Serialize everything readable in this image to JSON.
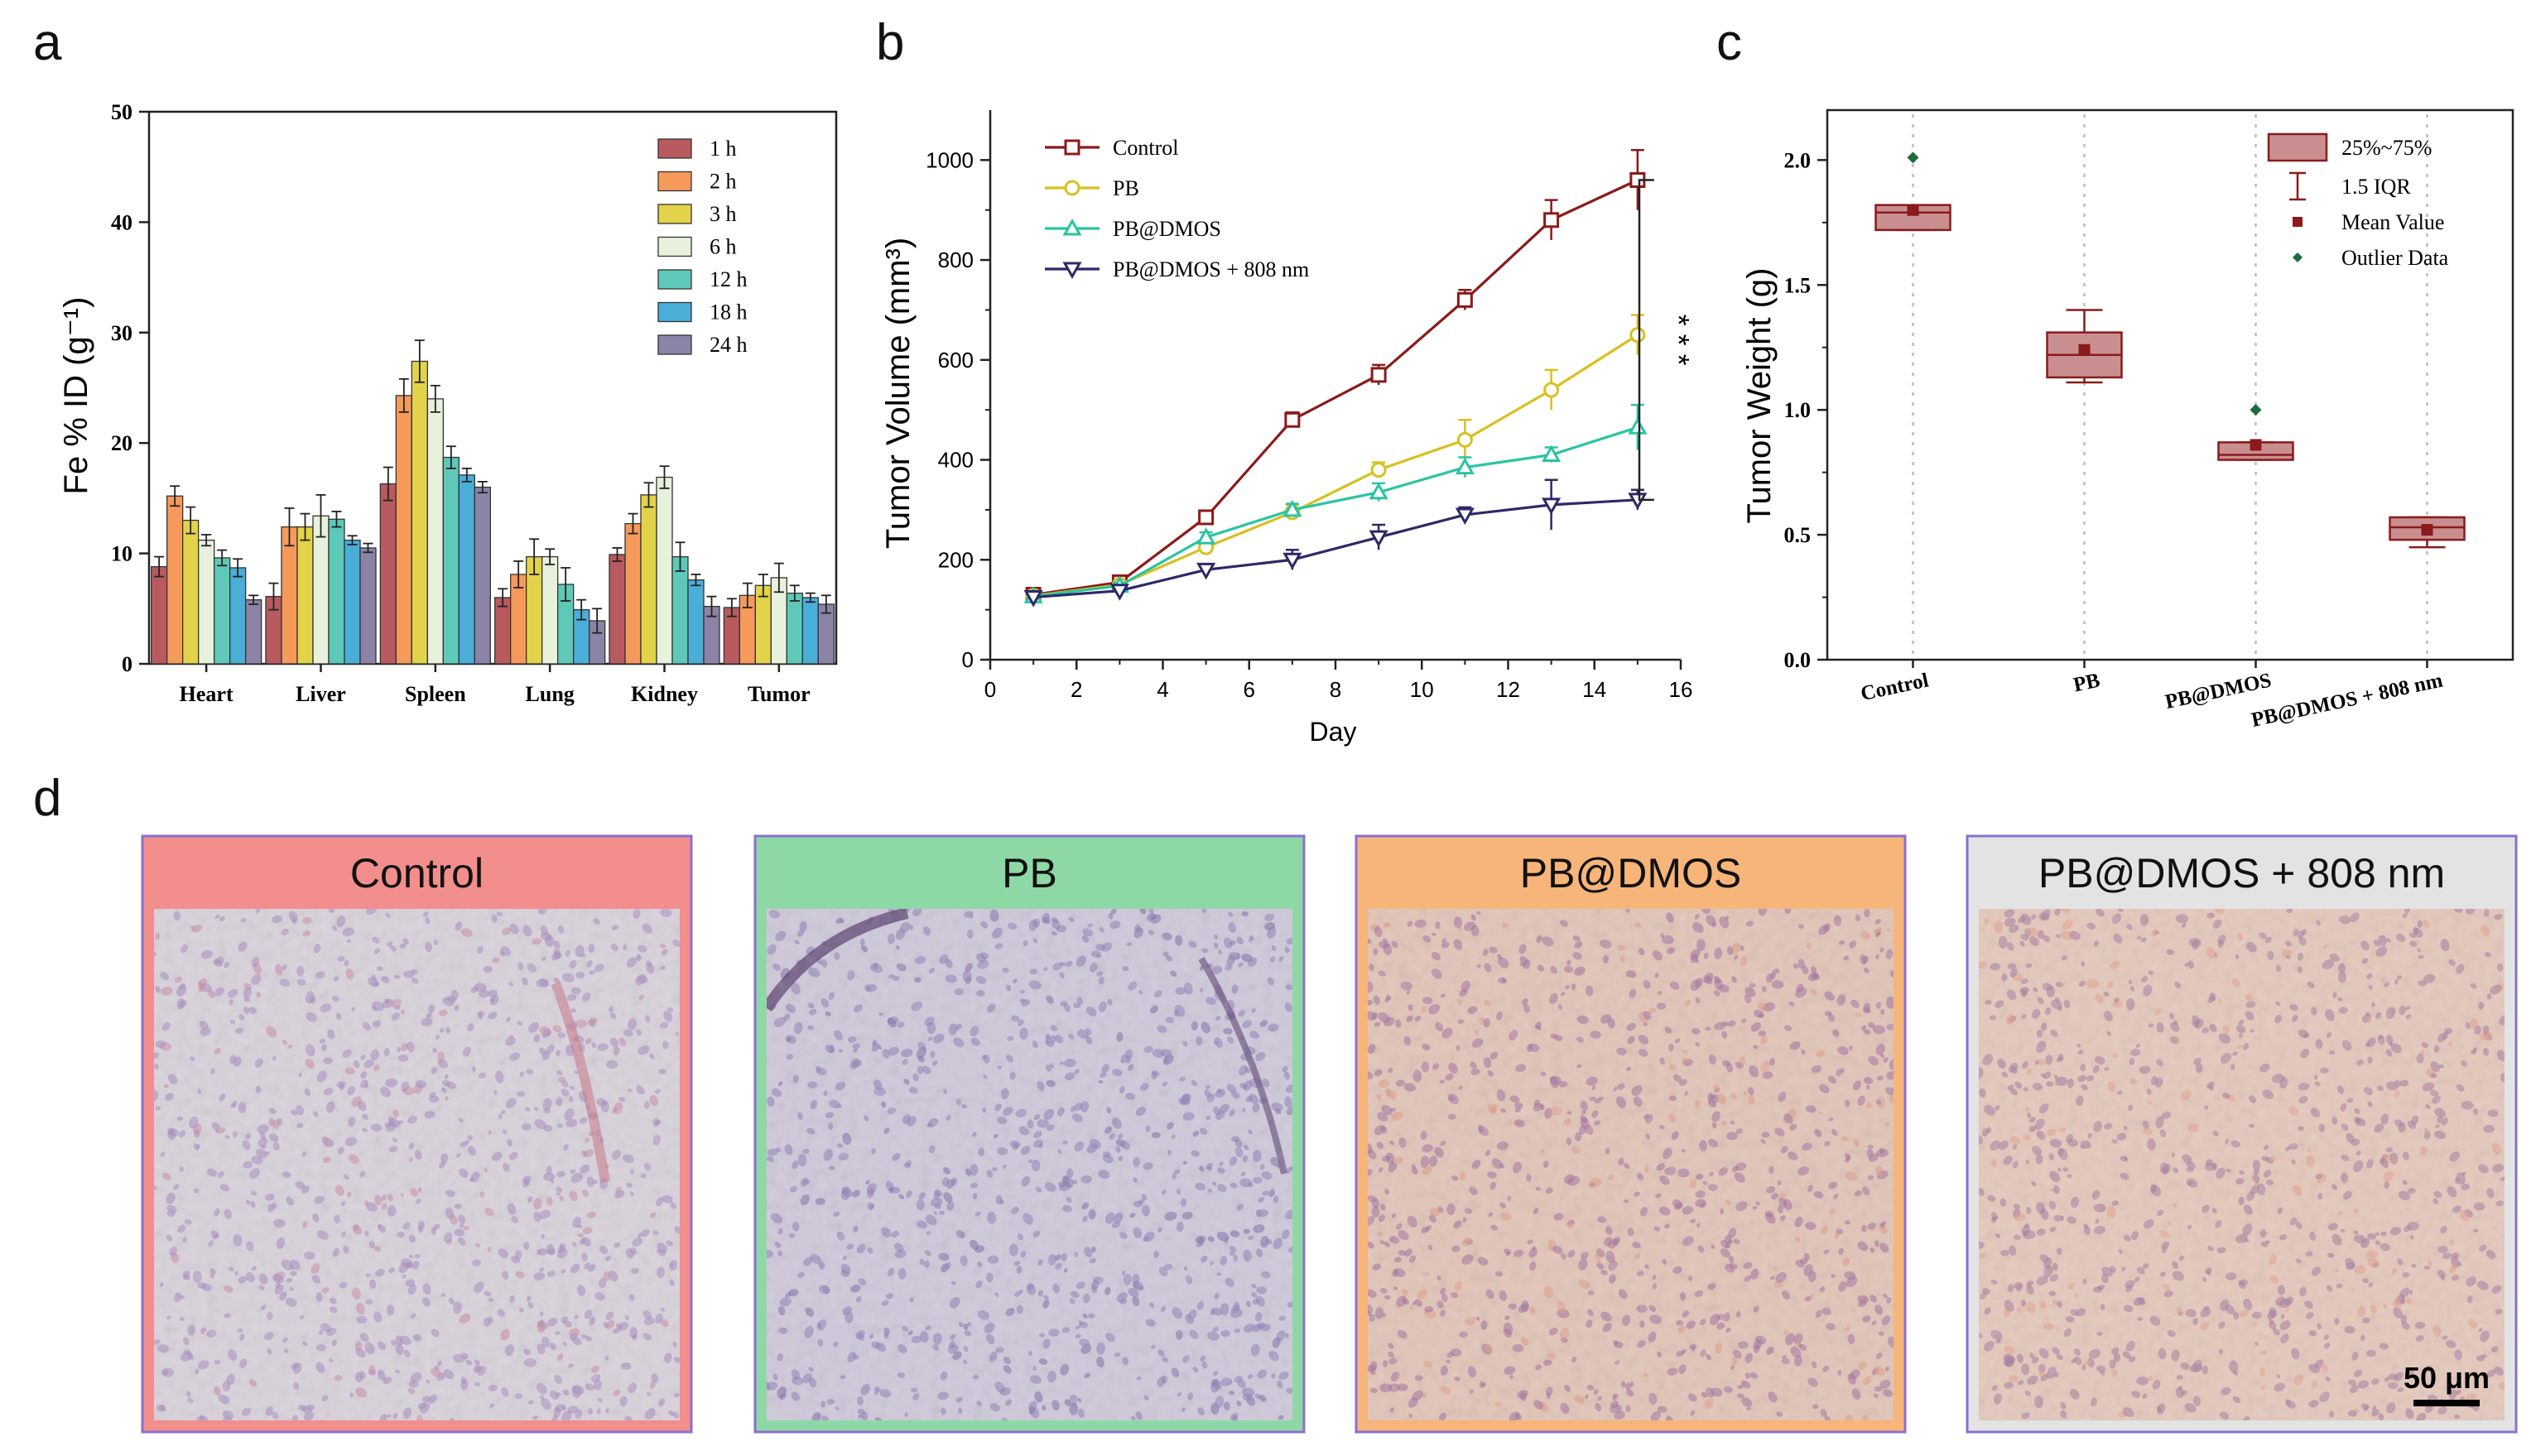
{
  "panel_letters": {
    "a": "a",
    "b": "b",
    "c": "c",
    "d": "d"
  },
  "chart_data": [
    {
      "id": "a",
      "type": "bar",
      "title": "",
      "xlabel": "",
      "ylabel": "Fe % ID (g⁻¹)",
      "ylim": [
        0,
        50
      ],
      "yticks": [
        "0",
        "10",
        "20",
        "30",
        "40",
        "50"
      ],
      "categories": [
        "Heart",
        "Liver",
        "Spleen",
        "Lung",
        "Kidney",
        "Tumor"
      ],
      "legend_position": "top-right",
      "series": [
        {
          "name": "1  h",
          "color": "#b85a5e",
          "values": [
            8.8,
            6.1,
            16.3,
            6.0,
            9.9,
            5.1
          ],
          "errors": [
            0.9,
            1.2,
            1.5,
            0.8,
            0.6,
            0.8
          ]
        },
        {
          "name": "2  h",
          "color": "#f59a5a",
          "values": [
            15.2,
            12.4,
            24.3,
            8.1,
            12.7,
            6.2
          ],
          "errors": [
            0.9,
            1.7,
            1.5,
            1.2,
            0.9,
            1.1
          ]
        },
        {
          "name": "3  h",
          "color": "#e2d34a",
          "values": [
            13.0,
            12.4,
            27.4,
            9.7,
            15.3,
            7.1
          ],
          "errors": [
            1.2,
            1.2,
            1.9,
            1.6,
            1.1,
            1.0
          ]
        },
        {
          "name": "6  h",
          "color": "#e7f1dc",
          "values": [
            11.2,
            13.4,
            24.0,
            9.7,
            16.9,
            7.8
          ],
          "errors": [
            0.5,
            1.9,
            1.2,
            0.7,
            1.0,
            1.3
          ]
        },
        {
          "name": "12 h",
          "color": "#5ec9b8",
          "values": [
            9.6,
            13.1,
            18.7,
            7.2,
            9.7,
            6.4
          ],
          "errors": [
            0.7,
            0.7,
            1.0,
            1.5,
            1.3,
            0.7
          ]
        },
        {
          "name": "18 h",
          "color": "#4aaed8",
          "values": [
            8.7,
            11.2,
            17.1,
            4.9,
            7.6,
            6.0
          ],
          "errors": [
            0.8,
            0.4,
            0.6,
            0.9,
            0.5,
            0.4
          ]
        },
        {
          "name": "24 h",
          "color": "#8b84a6",
          "values": [
            5.8,
            10.5,
            16.0,
            3.9,
            5.2,
            5.4
          ],
          "errors": [
            0.4,
            0.4,
            0.5,
            1.1,
            0.9,
            0.8
          ]
        }
      ]
    },
    {
      "id": "b",
      "type": "line",
      "title": "",
      "xlabel": "Day",
      "ylabel": "Tumor Volume (mm³)",
      "xlim": [
        0,
        16
      ],
      "ylim": [
        0,
        1100
      ],
      "xticks": [
        "0",
        "2",
        "4",
        "6",
        "8",
        "10",
        "12",
        "14",
        "16"
      ],
      "yticks": [
        "0",
        "200",
        "400",
        "600",
        "800",
        "1000"
      ],
      "x": [
        1,
        3,
        5,
        7,
        9,
        11,
        13,
        15
      ],
      "legend_position": "top-left",
      "significance": "* * *",
      "series": [
        {
          "name": "Control",
          "color": "#8b1a1a",
          "marker": "square",
          "values": [
            130,
            155,
            285,
            480,
            570,
            720,
            880,
            960
          ],
          "errors": [
            8,
            8,
            10,
            15,
            20,
            20,
            40,
            60
          ]
        },
        {
          "name": "PB",
          "color": "#d8c020",
          "marker": "circle",
          "values": [
            128,
            150,
            225,
            295,
            380,
            440,
            540,
            650
          ],
          "errors": [
            8,
            8,
            10,
            15,
            15,
            40,
            40,
            40
          ]
        },
        {
          "name": "PB@DMOS",
          "color": "#2ac4a4",
          "marker": "triangle-up",
          "values": [
            127,
            148,
            245,
            300,
            335,
            385,
            410,
            465
          ],
          "errors": [
            6,
            6,
            10,
            12,
            18,
            20,
            15,
            45
          ]
        },
        {
          "name": "PB@DMOS + 808 nm",
          "color": "#2c2a66",
          "marker": "triangle-down",
          "values": [
            125,
            138,
            180,
            200,
            245,
            290,
            310,
            320
          ],
          "errors": [
            6,
            6,
            8,
            20,
            25,
            15,
            50,
            20
          ]
        }
      ]
    },
    {
      "id": "c",
      "type": "box",
      "title": "",
      "xlabel": "",
      "ylabel": "Tumor Weight (g)",
      "ylim": [
        0,
        2.2
      ],
      "yticks": [
        "0.0",
        "0.5",
        "1.0",
        "1.5",
        "2.0"
      ],
      "categories": [
        "Control",
        "PB",
        "PB@DMOS",
        "PB@DMOS + 808 nm"
      ],
      "legend_position": "top-right",
      "legend": [
        "25%~75%",
        "1.5 IQR",
        "Mean Value",
        "Outlier Data"
      ],
      "box_color": "#c98f90",
      "mean_color": "#8b1a1a",
      "outlier_color": "#1e6b3a",
      "boxes": [
        {
          "q1": 1.72,
          "median": 1.79,
          "q3": 1.82,
          "whisker_low": 1.72,
          "whisker_high": 1.82,
          "mean": 1.8,
          "outlier": 2.01
        },
        {
          "q1": 1.13,
          "median": 1.22,
          "q3": 1.31,
          "whisker_low": 1.11,
          "whisker_high": 1.4,
          "mean": 1.24,
          "outlier": null
        },
        {
          "q1": 0.8,
          "median": 0.82,
          "q3": 0.87,
          "whisker_low": 0.8,
          "whisker_high": 0.87,
          "mean": 0.86,
          "outlier": 1.0
        },
        {
          "q1": 0.48,
          "median": 0.53,
          "q3": 0.57,
          "whisker_low": 0.45,
          "whisker_high": 0.57,
          "mean": 0.52,
          "outlier": null
        }
      ]
    }
  ],
  "panel_d": {
    "scale_bar": "50 μm",
    "images": [
      {
        "label": "Control",
        "header_color": "#f28e8c",
        "border_color": "#8a6fd0",
        "tissue": "#d9d2dc",
        "cells": "#a58bbf",
        "accent": "#c98aa5"
      },
      {
        "label": "PB",
        "header_color": "#8ed8a6",
        "border_color": "#8a6fd0",
        "tissue": "#cfc9da",
        "cells": "#8f7cb6",
        "accent": "#7f6aa8"
      },
      {
        "label": "PB@DMOS",
        "header_color": "#f7b57a",
        "border_color": "#8a6fd0",
        "tissue": "#e2c5b8",
        "cells": "#a0709e",
        "accent": "#e09a8a"
      },
      {
        "label": "PB@DMOS + 808 nm",
        "header_color": "#e3e3e3",
        "border_color": "#8a6fd0",
        "tissue": "#e5c9bc",
        "cells": "#a57a9f",
        "accent": "#e6a08e"
      }
    ]
  }
}
